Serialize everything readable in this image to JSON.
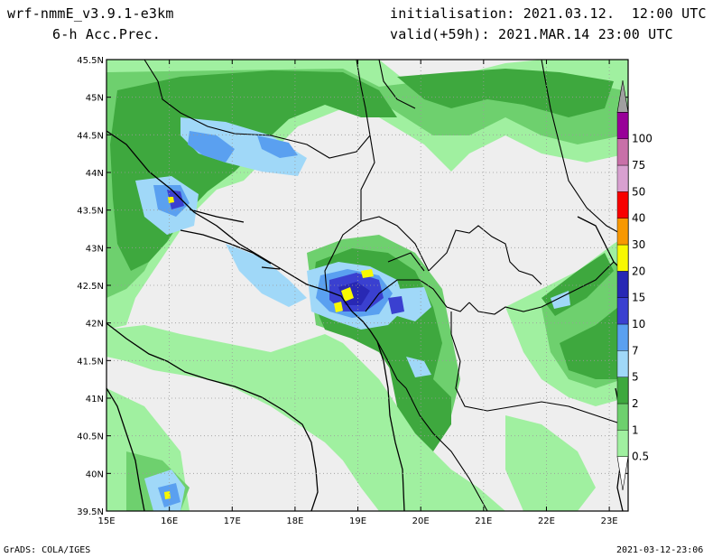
{
  "header": {
    "model": "wrf-nmmE_v3.9.1-e3km",
    "field": "6-h Acc.Prec.",
    "init": "initialisation: 2021.03.12.  12:00 UTC",
    "valid": "valid(+59h): 2021.MAR.14 23:00 UTC"
  },
  "map": {
    "lat_labels": [
      "45.5N",
      "45N",
      "44.5N",
      "44N",
      "43.5N",
      "43N",
      "42.5N",
      "42N",
      "41.5N",
      "41N",
      "40.5N",
      "40N",
      "39.5N"
    ],
    "lon_labels": [
      "15E",
      "16E",
      "17E",
      "18E",
      "19E",
      "20E",
      "21E",
      "22E",
      "23E"
    ],
    "lat_range": [
      39.5,
      45.5
    ],
    "lon_range": [
      15,
      23.3
    ],
    "grid": "dotted"
  },
  "legend": {
    "levels": [
      "0.5",
      "1",
      "2",
      "5",
      "7",
      "10",
      "15",
      "20",
      "30",
      "40",
      "50",
      "75",
      "100"
    ],
    "colors": [
      "#ffffff",
      "#a0f0a0",
      "#6ed06e",
      "#3ea83e",
      "#a0d8f8",
      "#5aa0f0",
      "#3a40d0",
      "#2828b4",
      "#f8f800",
      "#f89800",
      "#f80000",
      "#d8a0d0",
      "#c870a8",
      "#980098",
      "#a0a0a0"
    ]
  },
  "footer": {
    "left": "GrADS: COLA/IGES",
    "right": "2021-03-12-23:06"
  }
}
